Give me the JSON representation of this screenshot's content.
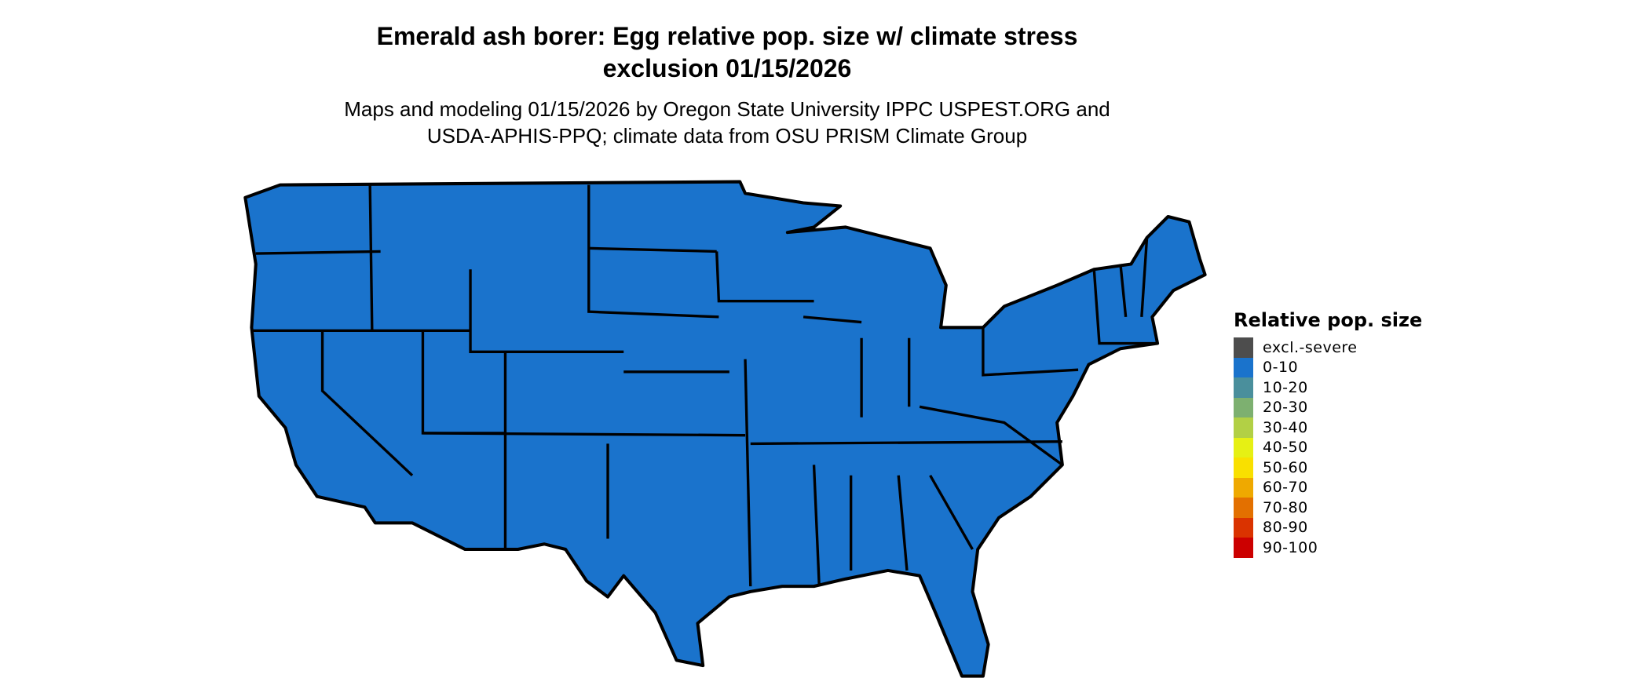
{
  "title_line1": "Emerald ash borer: Egg relative pop. size w/ climate stress",
  "title_line2": "exclusion 01/15/2026",
  "subtitle_line1": "Maps and modeling 01/15/2026 by Oregon State University IPPC USPEST.ORG and",
  "subtitle_line2": "USDA-APHIS-PPQ; climate data from OSU PRISM Climate Group",
  "map": {
    "region": "Contiguous United States",
    "fill_category": "0-10",
    "fill_color": "#1a73cc",
    "border_color": "#000000"
  },
  "legend": {
    "title": "Relative pop. size",
    "items": [
      {
        "label": "excl.-severe",
        "color": "#4d4d4d"
      },
      {
        "label": "0-10",
        "color": "#1a73cc"
      },
      {
        "label": "10-20",
        "color": "#4a8f9c"
      },
      {
        "label": "20-30",
        "color": "#7db070"
      },
      {
        "label": "30-40",
        "color": "#b2d045"
      },
      {
        "label": "40-50",
        "color": "#e6f014"
      },
      {
        "label": "50-60",
        "color": "#f9e000"
      },
      {
        "label": "60-70",
        "color": "#efa900"
      },
      {
        "label": "70-80",
        "color": "#e37000"
      },
      {
        "label": "80-90",
        "color": "#da3300"
      },
      {
        "label": "90-100",
        "color": "#cc0000"
      }
    ]
  }
}
